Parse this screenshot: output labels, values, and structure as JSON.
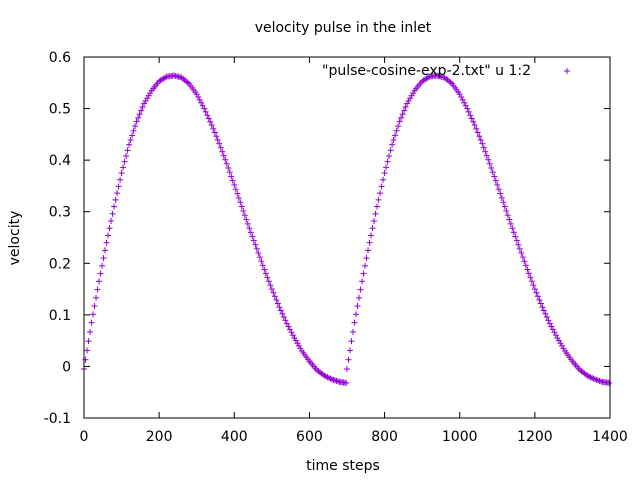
{
  "chart_data": {
    "type": "scatter",
    "title": "velocity pulse in the inlet",
    "xlabel": "time steps",
    "ylabel": "velocity",
    "xlim": [
      0,
      1400
    ],
    "ylim": [
      -0.1,
      0.6
    ],
    "x_ticks": [
      0,
      200,
      400,
      600,
      800,
      1000,
      1200,
      1400
    ],
    "x_tick_labels": [
      "0",
      "200",
      "400",
      "600",
      "800",
      "1000",
      "1200",
      "1400"
    ],
    "y_ticks": [
      -0.1,
      0,
      0.1,
      0.2,
      0.3,
      0.4,
      0.5,
      0.6
    ],
    "y_tick_labels": [
      "-0.1",
      "0",
      "0.1",
      "0.2",
      "0.3",
      "0.4",
      "0.5",
      "0.6"
    ],
    "grid": false,
    "legend_position": "top-right",
    "series": [
      {
        "name": "\"pulse-cosine-exp-2.txt\" u 1:2",
        "marker": "+",
        "color": "#9400d3",
        "points": [
          [
            0,
            -0.005
          ],
          [
            20,
            0.085
          ],
          [
            40,
            0.165
          ],
          [
            60,
            0.24
          ],
          [
            80,
            0.31
          ],
          [
            100,
            0.375
          ],
          [
            120,
            0.43
          ],
          [
            140,
            0.475
          ],
          [
            160,
            0.51
          ],
          [
            180,
            0.535
          ],
          [
            200,
            0.553
          ],
          [
            220,
            0.562
          ],
          [
            240,
            0.564
          ],
          [
            260,
            0.56
          ],
          [
            280,
            0.548
          ],
          [
            300,
            0.528
          ],
          [
            320,
            0.5
          ],
          [
            340,
            0.468
          ],
          [
            360,
            0.432
          ],
          [
            380,
            0.393
          ],
          [
            400,
            0.352
          ],
          [
            420,
            0.31
          ],
          [
            440,
            0.268
          ],
          [
            460,
            0.228
          ],
          [
            480,
            0.188
          ],
          [
            500,
            0.15
          ],
          [
            520,
            0.115
          ],
          [
            540,
            0.083
          ],
          [
            560,
            0.055
          ],
          [
            580,
            0.03
          ],
          [
            600,
            0.01
          ],
          [
            620,
            -0.007
          ],
          [
            640,
            -0.018
          ],
          [
            660,
            -0.025
          ],
          [
            680,
            -0.03
          ],
          [
            698,
            -0.032
          ],
          [
            700,
            -0.005
          ],
          [
            720,
            0.085
          ],
          [
            740,
            0.165
          ],
          [
            760,
            0.24
          ],
          [
            780,
            0.31
          ],
          [
            800,
            0.375
          ],
          [
            820,
            0.43
          ],
          [
            840,
            0.475
          ],
          [
            860,
            0.51
          ],
          [
            880,
            0.535
          ],
          [
            900,
            0.553
          ],
          [
            920,
            0.562
          ],
          [
            940,
            0.564
          ],
          [
            960,
            0.56
          ],
          [
            980,
            0.548
          ],
          [
            1000,
            0.528
          ],
          [
            1020,
            0.5
          ],
          [
            1040,
            0.468
          ],
          [
            1060,
            0.432
          ],
          [
            1080,
            0.393
          ],
          [
            1100,
            0.352
          ],
          [
            1120,
            0.31
          ],
          [
            1140,
            0.268
          ],
          [
            1160,
            0.228
          ],
          [
            1180,
            0.188
          ],
          [
            1200,
            0.15
          ],
          [
            1220,
            0.115
          ],
          [
            1240,
            0.083
          ],
          [
            1260,
            0.055
          ],
          [
            1280,
            0.03
          ],
          [
            1300,
            0.01
          ],
          [
            1320,
            -0.007
          ],
          [
            1340,
            -0.018
          ],
          [
            1360,
            -0.025
          ],
          [
            1380,
            -0.03
          ],
          [
            1398,
            -0.032
          ]
        ]
      }
    ]
  }
}
